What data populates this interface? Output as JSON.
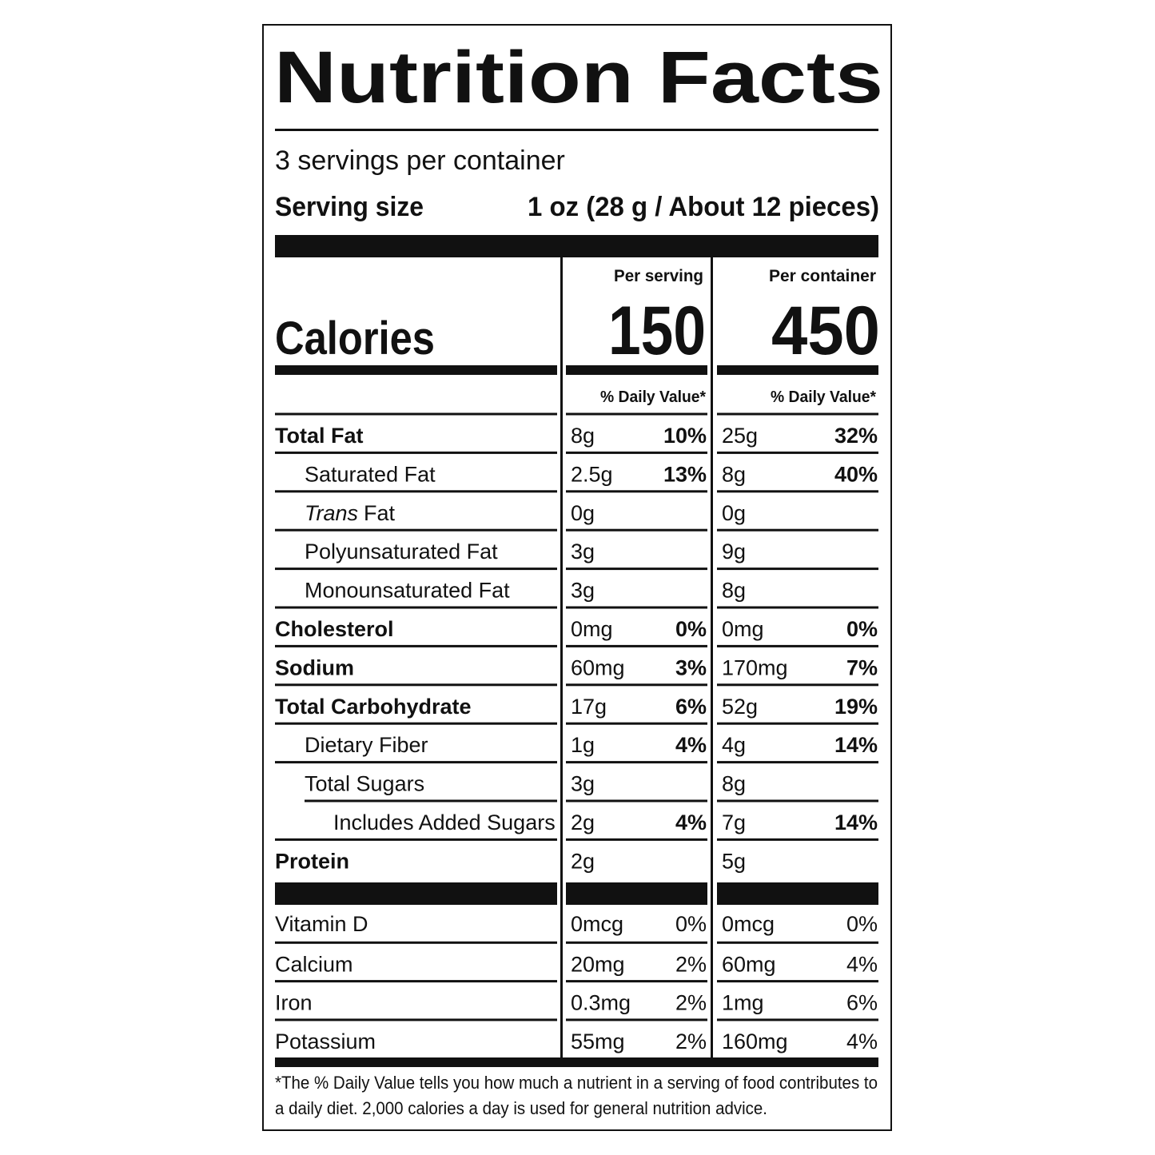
{
  "title": "Nutrition Facts",
  "servings": "3 servings per container",
  "serving_size": {
    "label": "Serving size",
    "value": "1 oz (28 g / About 12 pieces)"
  },
  "columns": [
    "Per serving",
    "Per container"
  ],
  "calories": {
    "label": "Calories",
    "values": [
      "150",
      "450"
    ]
  },
  "dv_header": "% Daily Value*",
  "rows": [
    {
      "name": "Total Fat",
      "bold": true,
      "indent": 0,
      "serving": [
        "8g",
        "10%"
      ],
      "container": [
        "25g",
        "32%"
      ]
    },
    {
      "name": "Saturated Fat",
      "bold": false,
      "indent": 1,
      "serving": [
        "2.5g",
        "13%"
      ],
      "container": [
        "8g",
        "40%"
      ]
    },
    {
      "name_italic": "Trans",
      "name": "Fat",
      "bold": false,
      "indent": 1,
      "serving": [
        "0g"
      ],
      "container": [
        "0g"
      ]
    },
    {
      "name": "Polyunsaturated Fat",
      "bold": false,
      "indent": 1,
      "serving": [
        "3g"
      ],
      "container": [
        "9g"
      ]
    },
    {
      "name": "Monounsaturated Fat",
      "bold": false,
      "indent": 1,
      "serving": [
        "3g"
      ],
      "container": [
        "8g"
      ]
    },
    {
      "name": "Cholesterol",
      "bold": true,
      "indent": 0,
      "serving": [
        "0mg",
        "0%"
      ],
      "container": [
        "0mg",
        "0%"
      ]
    },
    {
      "name": "Sodium",
      "bold": true,
      "indent": 0,
      "serving": [
        "60mg",
        "3%"
      ],
      "container": [
        "170mg",
        "7%"
      ]
    },
    {
      "name": "Total Carbohydrate",
      "bold": true,
      "indent": 0,
      "serving": [
        "17g",
        "6%"
      ],
      "container": [
        "52g",
        "19%"
      ]
    },
    {
      "name": "Dietary Fiber",
      "bold": false,
      "indent": 1,
      "serving": [
        "1g",
        "4%"
      ],
      "container": [
        "4g",
        "14%"
      ]
    },
    {
      "name": "Total Sugars",
      "bold": false,
      "indent": 1,
      "serving": [
        "3g"
      ],
      "container": [
        "8g"
      ]
    },
    {
      "name": "Includes Added Sugars",
      "bold": false,
      "indent": 2,
      "serving": [
        "2g",
        "4%"
      ],
      "container": [
        "7g",
        "14%"
      ]
    },
    {
      "name": "Protein",
      "bold": true,
      "indent": 0,
      "serving": [
        "2g"
      ],
      "container": [
        "5g"
      ]
    }
  ],
  "vitamins": [
    {
      "name": "Vitamin D",
      "serving": [
        "0mcg",
        "0%"
      ],
      "container": [
        "0mcg",
        "0%"
      ]
    },
    {
      "name": "Calcium",
      "serving": [
        "20mg",
        "2%"
      ],
      "container": [
        "60mg",
        "4%"
      ]
    },
    {
      "name": "Iron",
      "serving": [
        "0.3mg",
        "2%"
      ],
      "container": [
        "1mg",
        "6%"
      ]
    },
    {
      "name": "Potassium",
      "serving": [
        "55mg",
        "2%"
      ],
      "container": [
        "160mg",
        "4%"
      ]
    }
  ],
  "footnote": [
    "*The % Daily Value tells you how much a nutrient in a serving of food contributes to",
    "a daily diet. 2,000 calories a day is used for general nutrition advice."
  ]
}
